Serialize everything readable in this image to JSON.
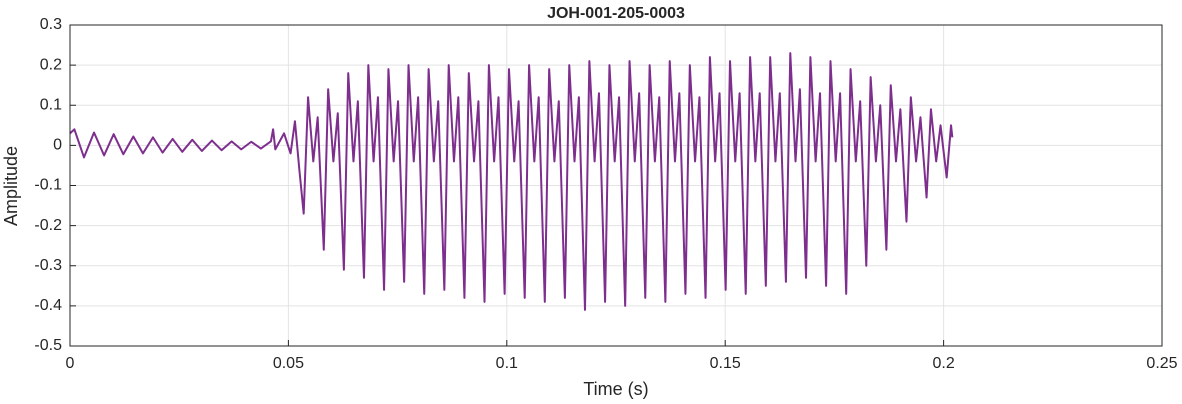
{
  "chart_data": {
    "type": "line",
    "title": "JOH-001-205-0003",
    "xlabel": "Time (s)",
    "ylabel": "Amplitude",
    "xlim": [
      0,
      0.25
    ],
    "xticks": [
      0,
      0.05,
      0.1,
      0.15,
      0.2,
      0.25
    ],
    "ylim": [
      -0.5,
      0.3
    ],
    "yticks": [
      0.3,
      0.2,
      0.1,
      0,
      -0.1,
      -0.2,
      -0.3,
      -0.4,
      -0.5
    ],
    "grid": true,
    "x": [
      0,
      0.001,
      0.0032,
      0.0055,
      0.0078,
      0.01,
      0.0122,
      0.0145,
      0.0167,
      0.019,
      0.0212,
      0.0235,
      0.0257,
      0.028,
      0.0302,
      0.0325,
      0.0347,
      0.037,
      0.0392,
      0.0415,
      0.0437,
      0.046,
      0.0465,
      0.047,
      0.049,
      0.0505,
      0.0515,
      0.0525,
      0.0535,
      0.0545,
      0.0557,
      0.0567,
      0.0581,
      0.0591,
      0.0603,
      0.0613,
      0.0627,
      0.0637,
      0.0649,
      0.0659,
      0.0673,
      0.0683,
      0.0695,
      0.0705,
      0.0719,
      0.0729,
      0.0741,
      0.0751,
      0.0765,
      0.0775,
      0.0787,
      0.0797,
      0.0811,
      0.0821,
      0.0833,
      0.0843,
      0.0857,
      0.0867,
      0.0879,
      0.0889,
      0.0903,
      0.0913,
      0.0925,
      0.0935,
      0.0949,
      0.0959,
      0.0971,
      0.0981,
      0.0995,
      0.1005,
      0.1017,
      0.1027,
      0.1041,
      0.1051,
      0.1063,
      0.1073,
      0.1087,
      0.1097,
      0.1109,
      0.1119,
      0.1133,
      0.1143,
      0.1155,
      0.1165,
      0.1179,
      0.1189,
      0.1201,
      0.1211,
      0.1225,
      0.1235,
      0.1247,
      0.1257,
      0.1271,
      0.1281,
      0.1293,
      0.1303,
      0.1317,
      0.1327,
      0.1339,
      0.1349,
      0.1363,
      0.1373,
      0.1385,
      0.1395,
      0.1409,
      0.1419,
      0.1431,
      0.1441,
      0.1455,
      0.1465,
      0.1477,
      0.1487,
      0.1501,
      0.1511,
      0.1523,
      0.1533,
      0.1547,
      0.1557,
      0.1569,
      0.1579,
      0.1593,
      0.1603,
      0.1615,
      0.1625,
      0.1639,
      0.1649,
      0.1661,
      0.1671,
      0.1685,
      0.1695,
      0.1707,
      0.1717,
      0.1731,
      0.1741,
      0.1753,
      0.1763,
      0.1777,
      0.1787,
      0.1799,
      0.1809,
      0.1823,
      0.1833,
      0.1845,
      0.1855,
      0.1869,
      0.1879,
      0.1891,
      0.1901,
      0.1915,
      0.1925,
      0.1937,
      0.1947,
      0.1961,
      0.1971,
      0.1983,
      0.1993,
      0.2007,
      0.2017,
      0.202
    ],
    "series": [
      {
        "name": "Amplitude",
        "color": "#7e2f8e",
        "values": [
          0.03,
          0.04,
          -0.03,
          0.032,
          -0.025,
          0.028,
          -0.022,
          0.022,
          -0.02,
          0.02,
          -0.018,
          0.016,
          -0.016,
          0.014,
          -0.014,
          0.012,
          -0.012,
          0.01,
          -0.01,
          0.009,
          -0.008,
          0.01,
          0.04,
          -0.01,
          0.03,
          -0.02,
          0.06,
          -0.06,
          -0.17,
          0.12,
          -0.04,
          0.07,
          -0.26,
          0.14,
          -0.04,
          0.08,
          -0.31,
          0.18,
          -0.04,
          0.11,
          -0.33,
          0.2,
          -0.04,
          0.12,
          -0.36,
          0.19,
          -0.04,
          0.11,
          -0.34,
          0.2,
          -0.04,
          0.12,
          -0.37,
          0.19,
          -0.04,
          0.11,
          -0.36,
          0.2,
          -0.04,
          0.12,
          -0.38,
          0.18,
          -0.04,
          0.11,
          -0.39,
          0.2,
          -0.04,
          0.12,
          -0.37,
          0.19,
          -0.04,
          0.11,
          -0.38,
          0.2,
          -0.04,
          0.12,
          -0.39,
          0.19,
          -0.04,
          0.11,
          -0.38,
          0.2,
          -0.04,
          0.12,
          -0.41,
          0.21,
          -0.04,
          0.13,
          -0.39,
          0.2,
          -0.04,
          0.12,
          -0.4,
          0.21,
          -0.04,
          0.13,
          -0.38,
          0.2,
          -0.04,
          0.12,
          -0.39,
          0.21,
          -0.04,
          0.13,
          -0.37,
          0.2,
          -0.04,
          0.12,
          -0.38,
          0.22,
          -0.04,
          0.13,
          -0.36,
          0.21,
          -0.04,
          0.13,
          -0.37,
          0.22,
          -0.04,
          0.13,
          -0.35,
          0.22,
          -0.04,
          0.13,
          -0.34,
          0.23,
          -0.04,
          0.14,
          -0.33,
          0.22,
          -0.04,
          0.13,
          -0.35,
          0.21,
          -0.04,
          0.13,
          -0.37,
          0.19,
          -0.04,
          0.11,
          -0.3,
          0.17,
          -0.04,
          0.1,
          -0.26,
          0.15,
          -0.04,
          0.09,
          -0.19,
          0.12,
          -0.04,
          0.07,
          -0.13,
          0.09,
          -0.04,
          0.05,
          -0.08,
          0.05,
          0.02
        ]
      }
    ]
  }
}
